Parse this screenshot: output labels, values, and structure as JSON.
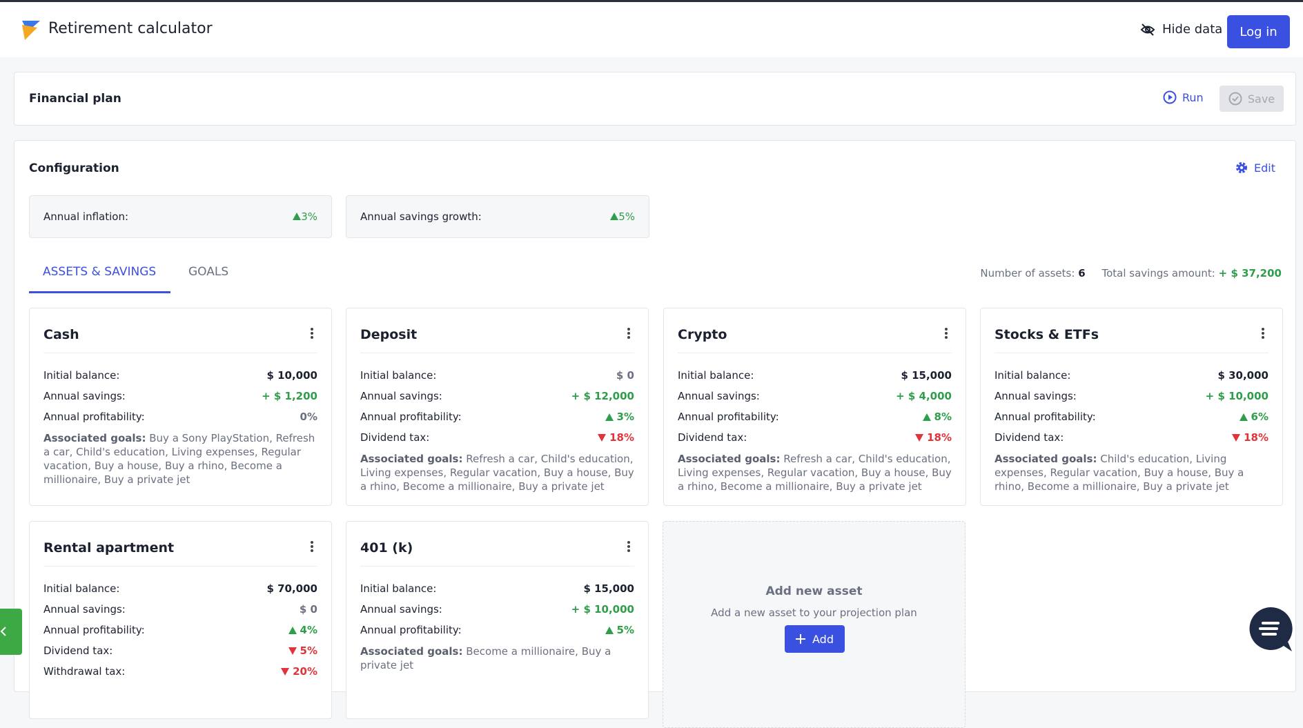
{
  "header": {
    "title": "Retirement calculator",
    "hide_data": "Hide data",
    "login": "Log in"
  },
  "plan": {
    "title": "Financial plan",
    "run": "Run",
    "save": "Save"
  },
  "configuration": {
    "title": "Configuration",
    "edit": "Edit",
    "settings": [
      {
        "label": "Annual inflation:",
        "value": "3%",
        "trend": "up",
        "color": "#2e9e4a"
      },
      {
        "label": "Annual savings growth:",
        "value": "5%",
        "trend": "up",
        "color": "#2e9e4a"
      }
    ]
  },
  "tabs": {
    "items": [
      "ASSETS & SAVINGS",
      "GOALS"
    ],
    "active": 0,
    "active_color": "#3a50e0"
  },
  "summary": {
    "assets_label": "Number of assets:",
    "assets_value": 6,
    "total_label": "Total savings amount:",
    "total_value": "+ $ 37,200",
    "total_color": "#2e9e4a"
  },
  "assets": [
    {
      "name": "Cash",
      "rows": [
        {
          "label": "Initial balance:",
          "value": "$ 10,000",
          "color": "#1c2130"
        },
        {
          "label": "Annual savings:",
          "value": "+ $ 1,200",
          "color": "#2e9e4a"
        },
        {
          "label": "Annual profitability:",
          "value": "0%",
          "color": "#6b7080"
        }
      ],
      "goals_label": "Associated goals:",
      "goals": "Buy a Sony PlayStation, Refresh a car, Child's education, Living expenses, Regular vacation, Buy a house, Buy a rhino, Become a millionaire, Buy a private jet"
    },
    {
      "name": "Deposit",
      "rows": [
        {
          "label": "Initial balance:",
          "value": "$ 0",
          "color": "#6b7080"
        },
        {
          "label": "Annual savings:",
          "value": "+ $ 12,000",
          "color": "#2e9e4a"
        },
        {
          "label": "Annual profitability:",
          "value": "3%",
          "trend": "up",
          "color": "#2e9e4a"
        },
        {
          "label": "Dividend tax:",
          "value": "18%",
          "trend": "down",
          "color": "#e0343a"
        }
      ],
      "goals_label": "Associated goals:",
      "goals": "Refresh a car, Child's education, Living expenses, Regular vacation, Buy a house, Buy a rhino, Become a millionaire, Buy a private jet"
    },
    {
      "name": "Crypto",
      "rows": [
        {
          "label": "Initial balance:",
          "value": "$ 15,000",
          "color": "#1c2130"
        },
        {
          "label": "Annual savings:",
          "value": "+ $ 4,000",
          "color": "#2e9e4a"
        },
        {
          "label": "Annual profitability:",
          "value": "8%",
          "trend": "up",
          "color": "#2e9e4a"
        },
        {
          "label": "Dividend tax:",
          "value": "18%",
          "trend": "down",
          "color": "#e0343a"
        }
      ],
      "goals_label": "Associated goals:",
      "goals": "Refresh a car, Child's education, Living expenses, Regular vacation, Buy a house, Buy a rhino, Become a millionaire, Buy a private jet"
    },
    {
      "name": "Stocks & ETFs",
      "rows": [
        {
          "label": "Initial balance:",
          "value": "$ 30,000",
          "color": "#1c2130"
        },
        {
          "label": "Annual savings:",
          "value": "+ $ 10,000",
          "color": "#2e9e4a"
        },
        {
          "label": "Annual profitability:",
          "value": "6%",
          "trend": "up",
          "color": "#2e9e4a"
        },
        {
          "label": "Dividend tax:",
          "value": "18%",
          "trend": "down",
          "color": "#e0343a"
        }
      ],
      "goals_label": "Associated goals:",
      "goals": "Child's education, Living expenses, Regular vacation, Buy a house, Buy a rhino, Become a millionaire, Buy a private jet"
    },
    {
      "name": "Rental apartment",
      "rows": [
        {
          "label": "Initial balance:",
          "value": "$ 70,000",
          "color": "#1c2130"
        },
        {
          "label": "Annual savings:",
          "value": "$ 0",
          "color": "#6b7080"
        },
        {
          "label": "Annual profitability:",
          "value": "4%",
          "trend": "up",
          "color": "#2e9e4a"
        },
        {
          "label": "Dividend tax:",
          "value": "5%",
          "trend": "down",
          "color": "#e0343a"
        },
        {
          "label": "Withdrawal tax:",
          "value": "20%",
          "trend": "down",
          "color": "#e0343a"
        }
      ]
    },
    {
      "name": "401 (k)",
      "rows": [
        {
          "label": "Initial balance:",
          "value": "$ 15,000",
          "color": "#1c2130"
        },
        {
          "label": "Annual savings:",
          "value": "+ $ 10,000",
          "color": "#2e9e4a"
        },
        {
          "label": "Annual profitability:",
          "value": "5%",
          "trend": "up",
          "color": "#2e9e4a"
        }
      ],
      "goals_label": "Associated goals:",
      "goals": "Become a millionaire, Buy a private jet"
    }
  ],
  "add_asset": {
    "title": "Add new asset",
    "text": "Add a new asset to your projection plan",
    "button": "Add"
  }
}
